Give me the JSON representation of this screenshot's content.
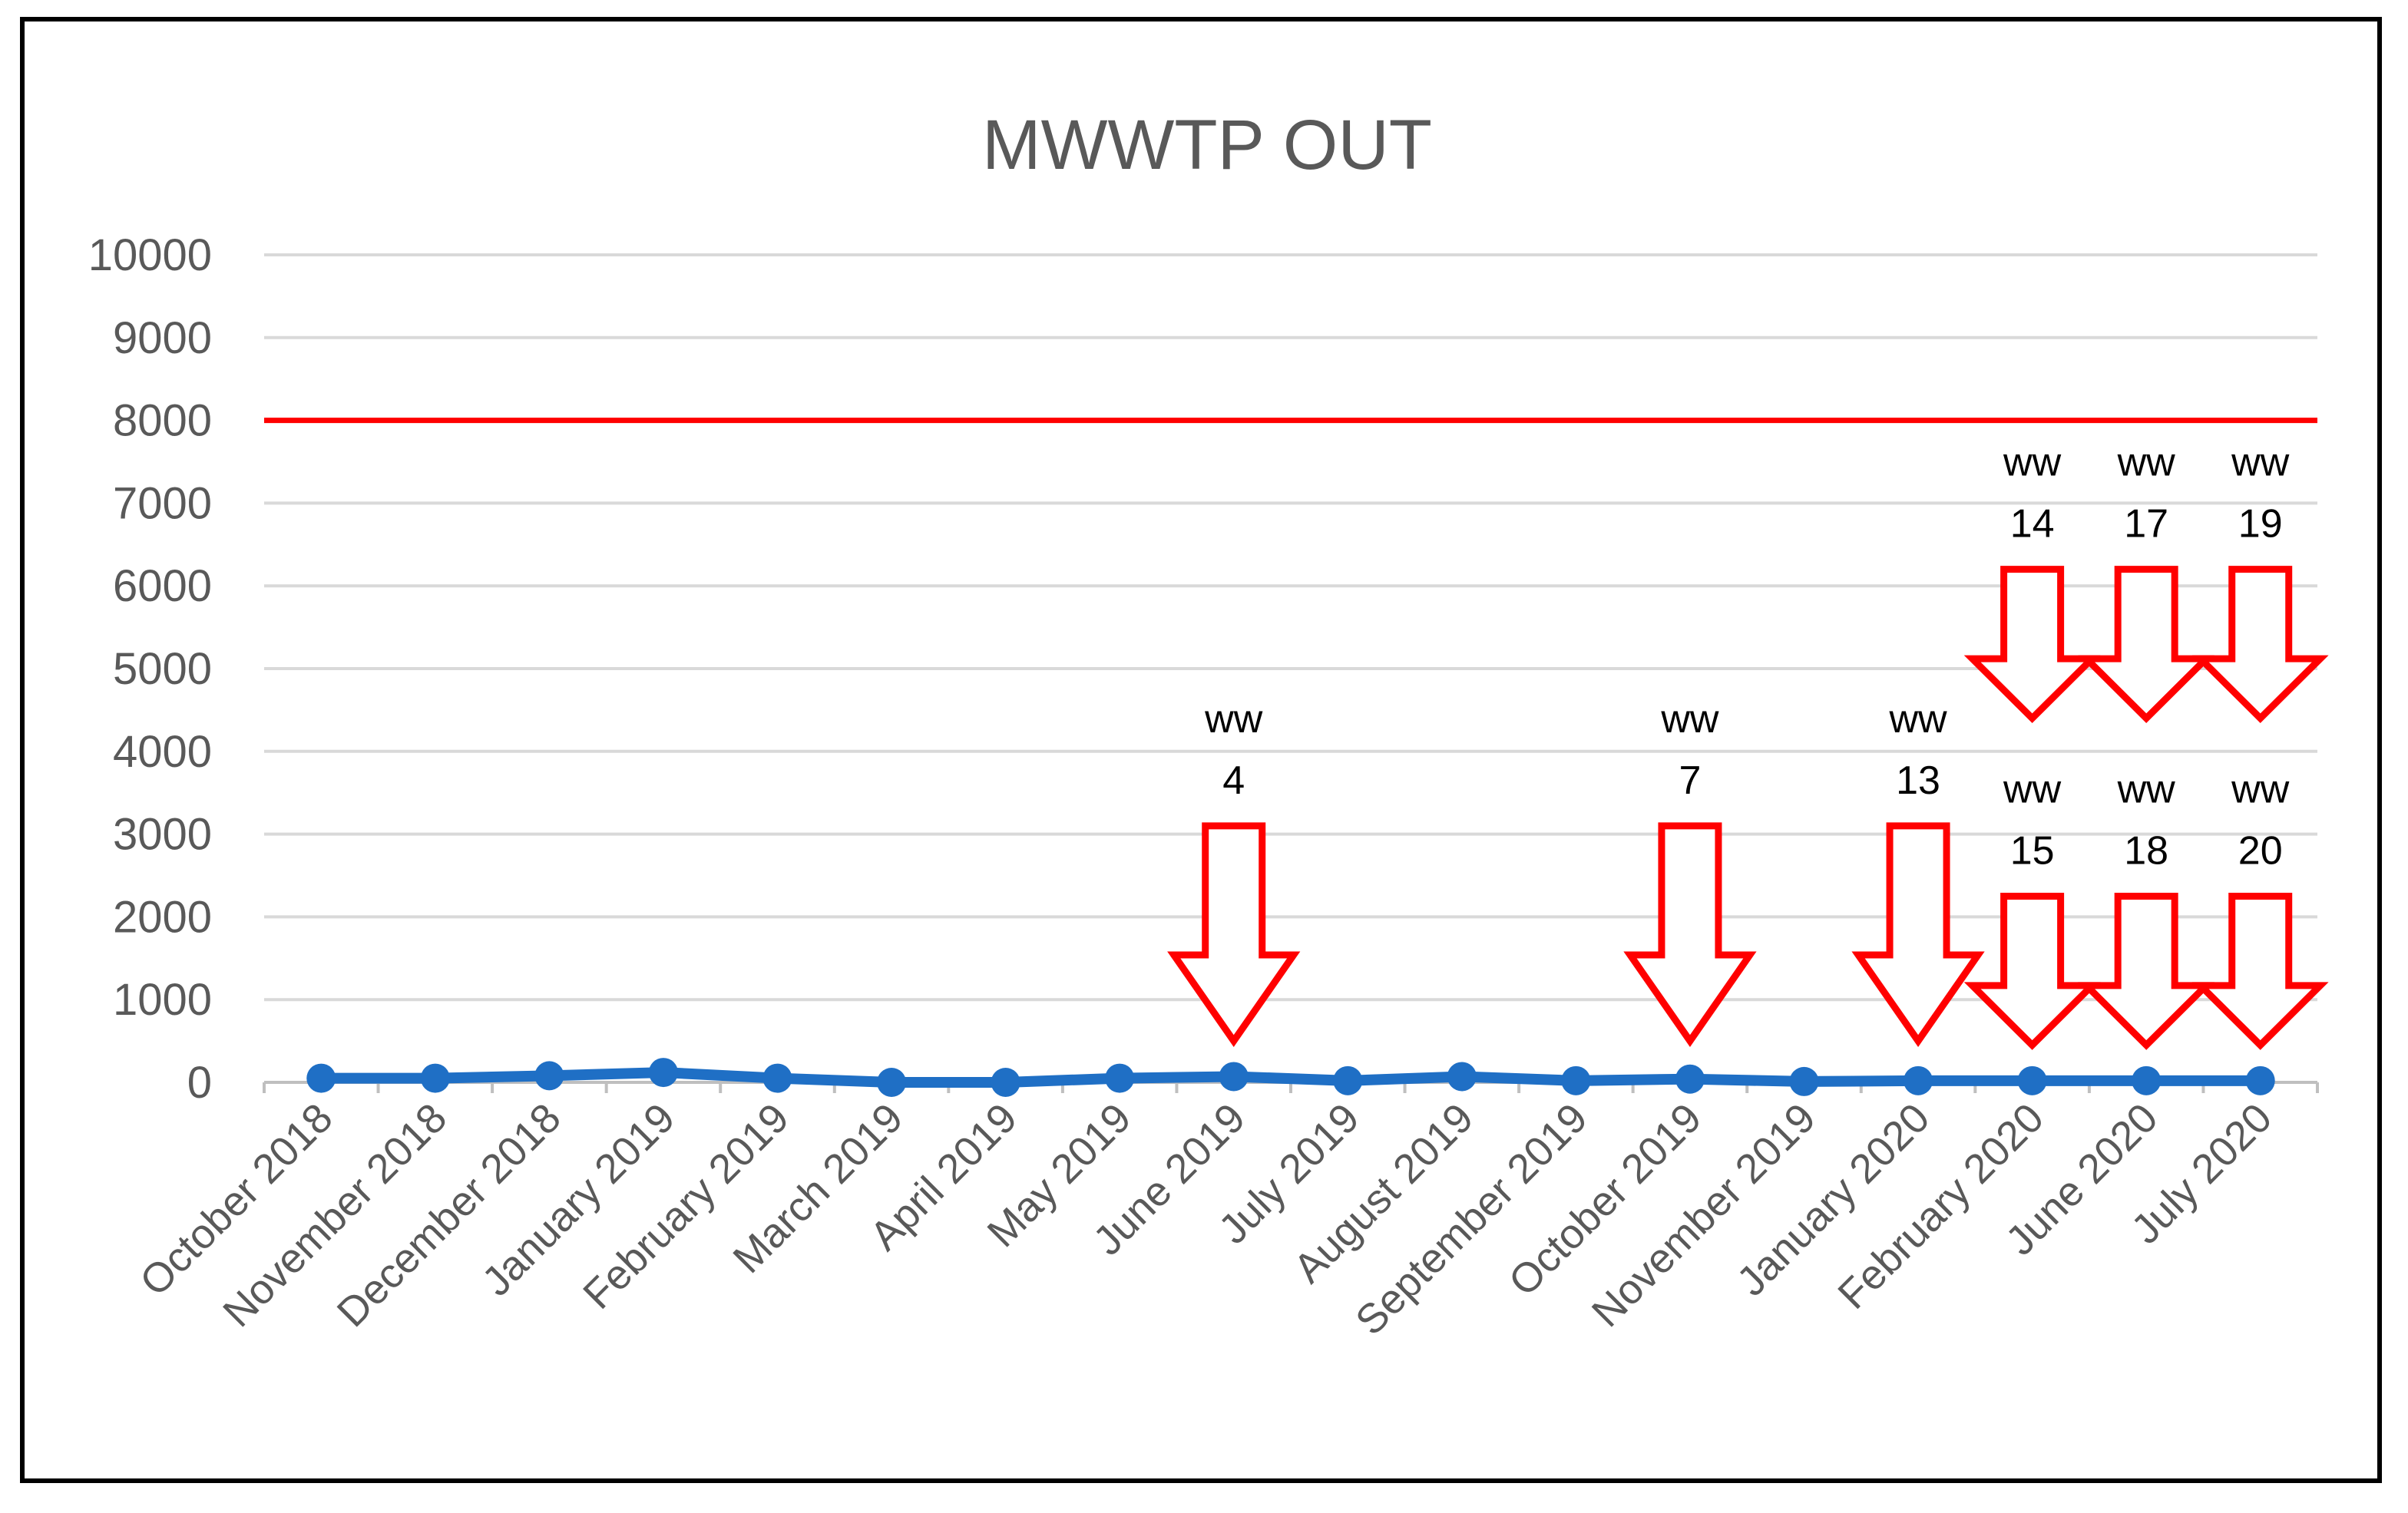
{
  "chart_data": {
    "type": "line",
    "title": "MWWTP OUT",
    "xlabel": "",
    "ylabel": "",
    "ylim": [
      0,
      10000
    ],
    "yticks": [
      "0",
      "1000",
      "2000",
      "3000",
      "4000",
      "5000",
      "6000",
      "7000",
      "8000",
      "9000",
      "10000"
    ],
    "grid": true,
    "legend": "none",
    "categories": [
      "October 2018",
      "November 2018",
      "December 2018",
      "January 2019",
      "February 2019",
      "March 2019",
      "April 2019",
      "May 2019",
      "June 2019",
      "July 2019",
      "August 2019",
      "September 2019",
      "October 2019",
      "November 2019",
      "January 2020",
      "February 2020",
      "June 2020",
      "July 2020"
    ],
    "series": [
      {
        "values": [
          50,
          50,
          80,
          120,
          50,
          0,
          0,
          50,
          70,
          20,
          70,
          20,
          40,
          10,
          20,
          20,
          20,
          20
        ],
        "color": "#1f6fc5"
      }
    ],
    "reference_line": {
      "value": 8000,
      "color": "#ff0000"
    },
    "annotations": [
      {
        "category": "June 2019",
        "line1": "ww",
        "line2": "4",
        "top": 3100,
        "tip": 500
      },
      {
        "category": "October 2019",
        "line1": "ww",
        "line2": "7",
        "top": 3100,
        "tip": 500
      },
      {
        "category": "January 2020",
        "line1": "ww",
        "line2": "13",
        "top": 3100,
        "tip": 500
      },
      {
        "category": "February 2020",
        "line1": "ww",
        "line2": "14",
        "top": 6200,
        "tip": 4400
      },
      {
        "category": "June 2020",
        "line1": "ww",
        "line2": "17",
        "top": 6200,
        "tip": 4400
      },
      {
        "category": "July 2020",
        "line1": "ww",
        "line2": "19",
        "top": 6200,
        "tip": 4400
      },
      {
        "category": "February 2020",
        "line1": "ww",
        "line2": "15",
        "top": 2250,
        "tip": 450
      },
      {
        "category": "June 2020",
        "line1": "ww",
        "line2": "18",
        "top": 2250,
        "tip": 450
      },
      {
        "category": "July 2020",
        "line1": "ww",
        "line2": "20",
        "top": 2250,
        "tip": 450
      }
    ],
    "annotation_color": "#ff0000"
  }
}
